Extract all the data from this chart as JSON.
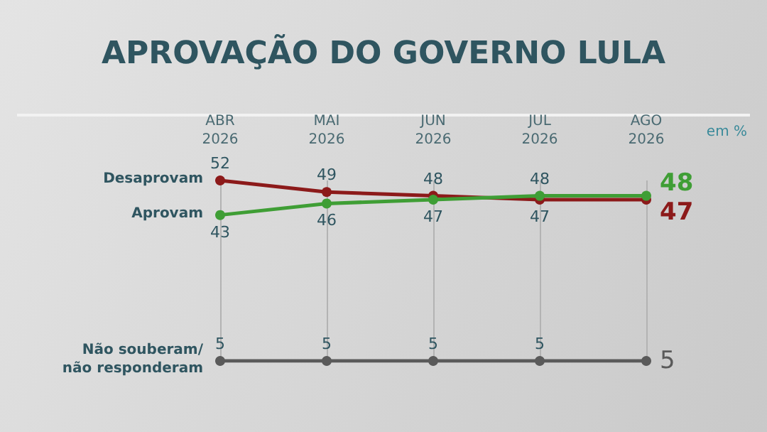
{
  "chart_data": {
    "type": "line",
    "title": "APROVAÇÃO DO GOVERNO LULA",
    "annotations": [
      "em %"
    ],
    "categories": [
      "ABR\n2026",
      "MAI\n2026",
      "JUN\n2026",
      "JUL\n2026",
      "AGO\n2026"
    ],
    "series": [
      {
        "name": "Desaprovam",
        "color": "#8c1a1a",
        "values": [
          52,
          49,
          48,
          47,
          47
        ]
      },
      {
        "name": "Aprovam",
        "color": "#3f9e35",
        "values": [
          43,
          46,
          47,
          48,
          48
        ]
      },
      {
        "name": "Não souberam/\nnão responderam",
        "color": "#5a5a5a",
        "values": [
          5,
          5,
          5,
          5,
          5
        ]
      }
    ],
    "data_labels": true,
    "grid": "x",
    "legend": false,
    "marker": "circle",
    "line_style": "solid"
  }
}
